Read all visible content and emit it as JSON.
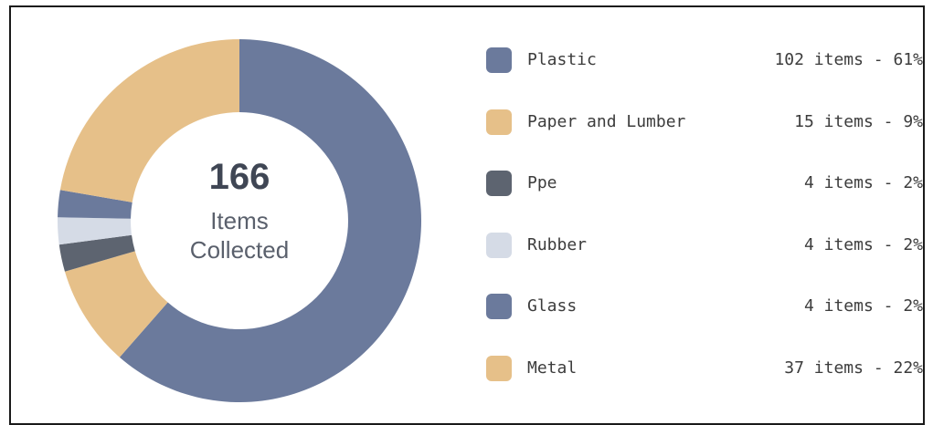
{
  "chart_data": {
    "type": "pie",
    "variant": "donut",
    "center": {
      "total": "166",
      "label_line1": "Items",
      "label_line2": "Collected"
    },
    "start_angle": 0,
    "segment_order": [
      "Plastic",
      "Paper and Lumber",
      "Ppe",
      "Rubber",
      "Glass",
      "Metal"
    ],
    "slices": [
      {
        "name": "Plastic",
        "value": 102,
        "percent": 61,
        "color": "#6b7a9c",
        "legend_text": "102 items - 61%"
      },
      {
        "name": "Paper and Lumber",
        "value": 15,
        "percent": 9,
        "color": "#e6c089",
        "legend_text": "15 items - 9%"
      },
      {
        "name": "Ppe",
        "value": 4,
        "percent": 2,
        "color": "#5d6470",
        "legend_text": "4 items - 2%"
      },
      {
        "name": "Rubber",
        "value": 4,
        "percent": 2,
        "color": "#d5dbe6",
        "legend_text": "4 items - 2%"
      },
      {
        "name": "Glass",
        "value": 4,
        "percent": 2,
        "color": "#6b7a9c",
        "legend_text": "4 items - 2%"
      },
      {
        "name": "Metal",
        "value": 37,
        "percent": 22,
        "color": "#e6c089",
        "legend_text": "37 items - 22%"
      }
    ],
    "legend_position": "right"
  }
}
